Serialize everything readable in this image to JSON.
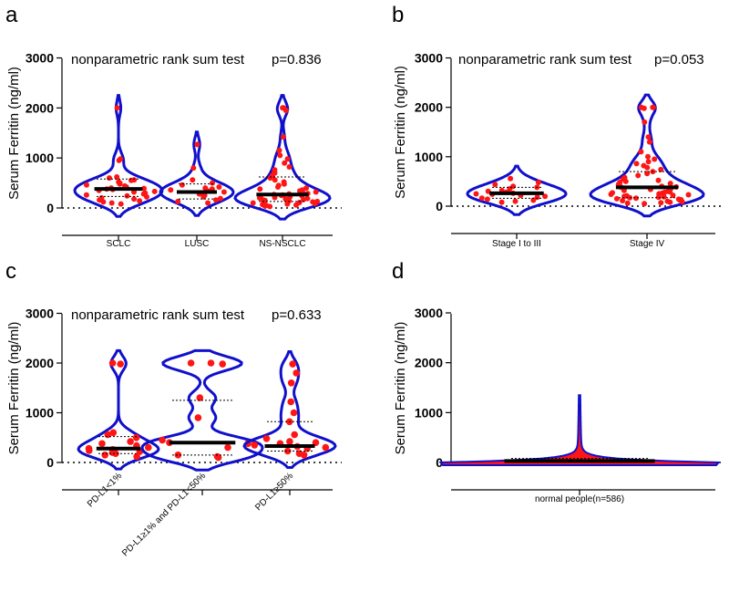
{
  "figure": {
    "test_text": "nonparametric rank sum test"
  },
  "chart_data": [
    {
      "panel": "a",
      "type": "violin",
      "ylabel": "Serum Ferritin (ng/ml)",
      "ylim": [
        0,
        3000
      ],
      "yticks": [
        "0",
        "1000",
        "2000",
        "3000"
      ],
      "p_value": "p=0.836",
      "categories": [
        "SCLC",
        "LUSC",
        "NS-NSCLC"
      ],
      "medians": [
        380,
        320,
        270
      ],
      "quartiles": [
        [
          230,
          580
        ],
        [
          180,
          480
        ],
        [
          130,
          620
        ]
      ],
      "values": [
        [
          2000,
          980,
          950,
          620,
          600,
          560,
          550,
          520,
          500,
          480,
          460,
          440,
          420,
          400,
          390,
          380,
          370,
          350,
          330,
          320,
          300,
          280,
          260,
          240,
          220,
          200,
          180,
          160,
          140,
          120,
          100,
          80
        ],
        [
          1270,
          800,
          560,
          500,
          460,
          420,
          400,
          380,
          360,
          340,
          320,
          300,
          280,
          250,
          220,
          190,
          160,
          130,
          100
        ],
        [
          2000,
          2000,
          1950,
          1420,
          1150,
          1050,
          980,
          900,
          820,
          760,
          700,
          650,
          600,
          560,
          520,
          480,
          450,
          420,
          400,
          380,
          360,
          340,
          320,
          300,
          290,
          280,
          270,
          260,
          250,
          240,
          230,
          220,
          210,
          200,
          190,
          180,
          170,
          160,
          150,
          140,
          130,
          120,
          110,
          100,
          90,
          80,
          70,
          60,
          50,
          40,
          30
        ]
      ]
    },
    {
      "panel": "b",
      "type": "violin",
      "ylabel": "Serum Ferritin (ng/ml)",
      "ylim": [
        0,
        3000
      ],
      "yticks": [
        "0",
        "1000",
        "2000",
        "3000"
      ],
      "p_value": "p=0.053",
      "categories": [
        "Stage I to III",
        "Stage IV"
      ],
      "medians": [
        260,
        380
      ],
      "quartiles": [
        [
          160,
          380
        ],
        [
          170,
          700
        ]
      ],
      "values": [
        [
          560,
          480,
          440,
          400,
          380,
          350,
          320,
          300,
          280,
          260,
          250,
          240,
          220,
          200,
          180,
          160,
          140,
          120,
          100,
          80
        ],
        [
          2000,
          2000,
          2000,
          1980,
          1700,
          1400,
          1300,
          1100,
          1000,
          950,
          900,
          860,
          820,
          780,
          740,
          700,
          660,
          620,
          580,
          550,
          520,
          500,
          480,
          460,
          440,
          420,
          400,
          390,
          380,
          370,
          360,
          340,
          320,
          300,
          290,
          280,
          270,
          260,
          250,
          240,
          230,
          220,
          210,
          200,
          190,
          180,
          170,
          160,
          150,
          140,
          130,
          120,
          110,
          100,
          90,
          80,
          70,
          60,
          50
        ]
      ]
    },
    {
      "panel": "c",
      "type": "violin",
      "ylabel": "Serum Ferritin (ng/ml)",
      "ylim": [
        0,
        3000
      ],
      "yticks": [
        "0",
        "1000",
        "2000",
        "3000"
      ],
      "p_value": "p=0.633",
      "categories": [
        "PD-L1<1%",
        "PD-L1≥1% and PD-L1<50%",
        "PD-L1≥50%"
      ],
      "medians": [
        280,
        400,
        330
      ],
      "quartiles": [
        [
          180,
          520
        ],
        [
          150,
          1250
        ],
        [
          230,
          820
        ]
      ],
      "values": [
        [
          2000,
          1980,
          600,
          560,
          500,
          420,
          380,
          340,
          300,
          280,
          260,
          240,
          220,
          200,
          180,
          150,
          120
        ],
        [
          2000,
          2000,
          1980,
          1300,
          900,
          450,
          400,
          380,
          300,
          150,
          120,
          100
        ],
        [
          1980,
          1800,
          1600,
          1220,
          1000,
          820,
          560,
          480,
          420,
          400,
          380,
          350,
          320,
          300,
          280,
          230,
          180,
          150
        ]
      ]
    },
    {
      "panel": "d",
      "type": "violin",
      "ylabel": "Serum Ferritin (ng/ml)",
      "ylim": [
        0,
        3000
      ],
      "yticks": [
        "0",
        "1000",
        "2000",
        "3000"
      ],
      "categories": [
        "normal people(n=586)"
      ],
      "medians": [
        30
      ],
      "quartiles": [
        [
          10,
          80
        ]
      ],
      "max": 1350
    }
  ]
}
